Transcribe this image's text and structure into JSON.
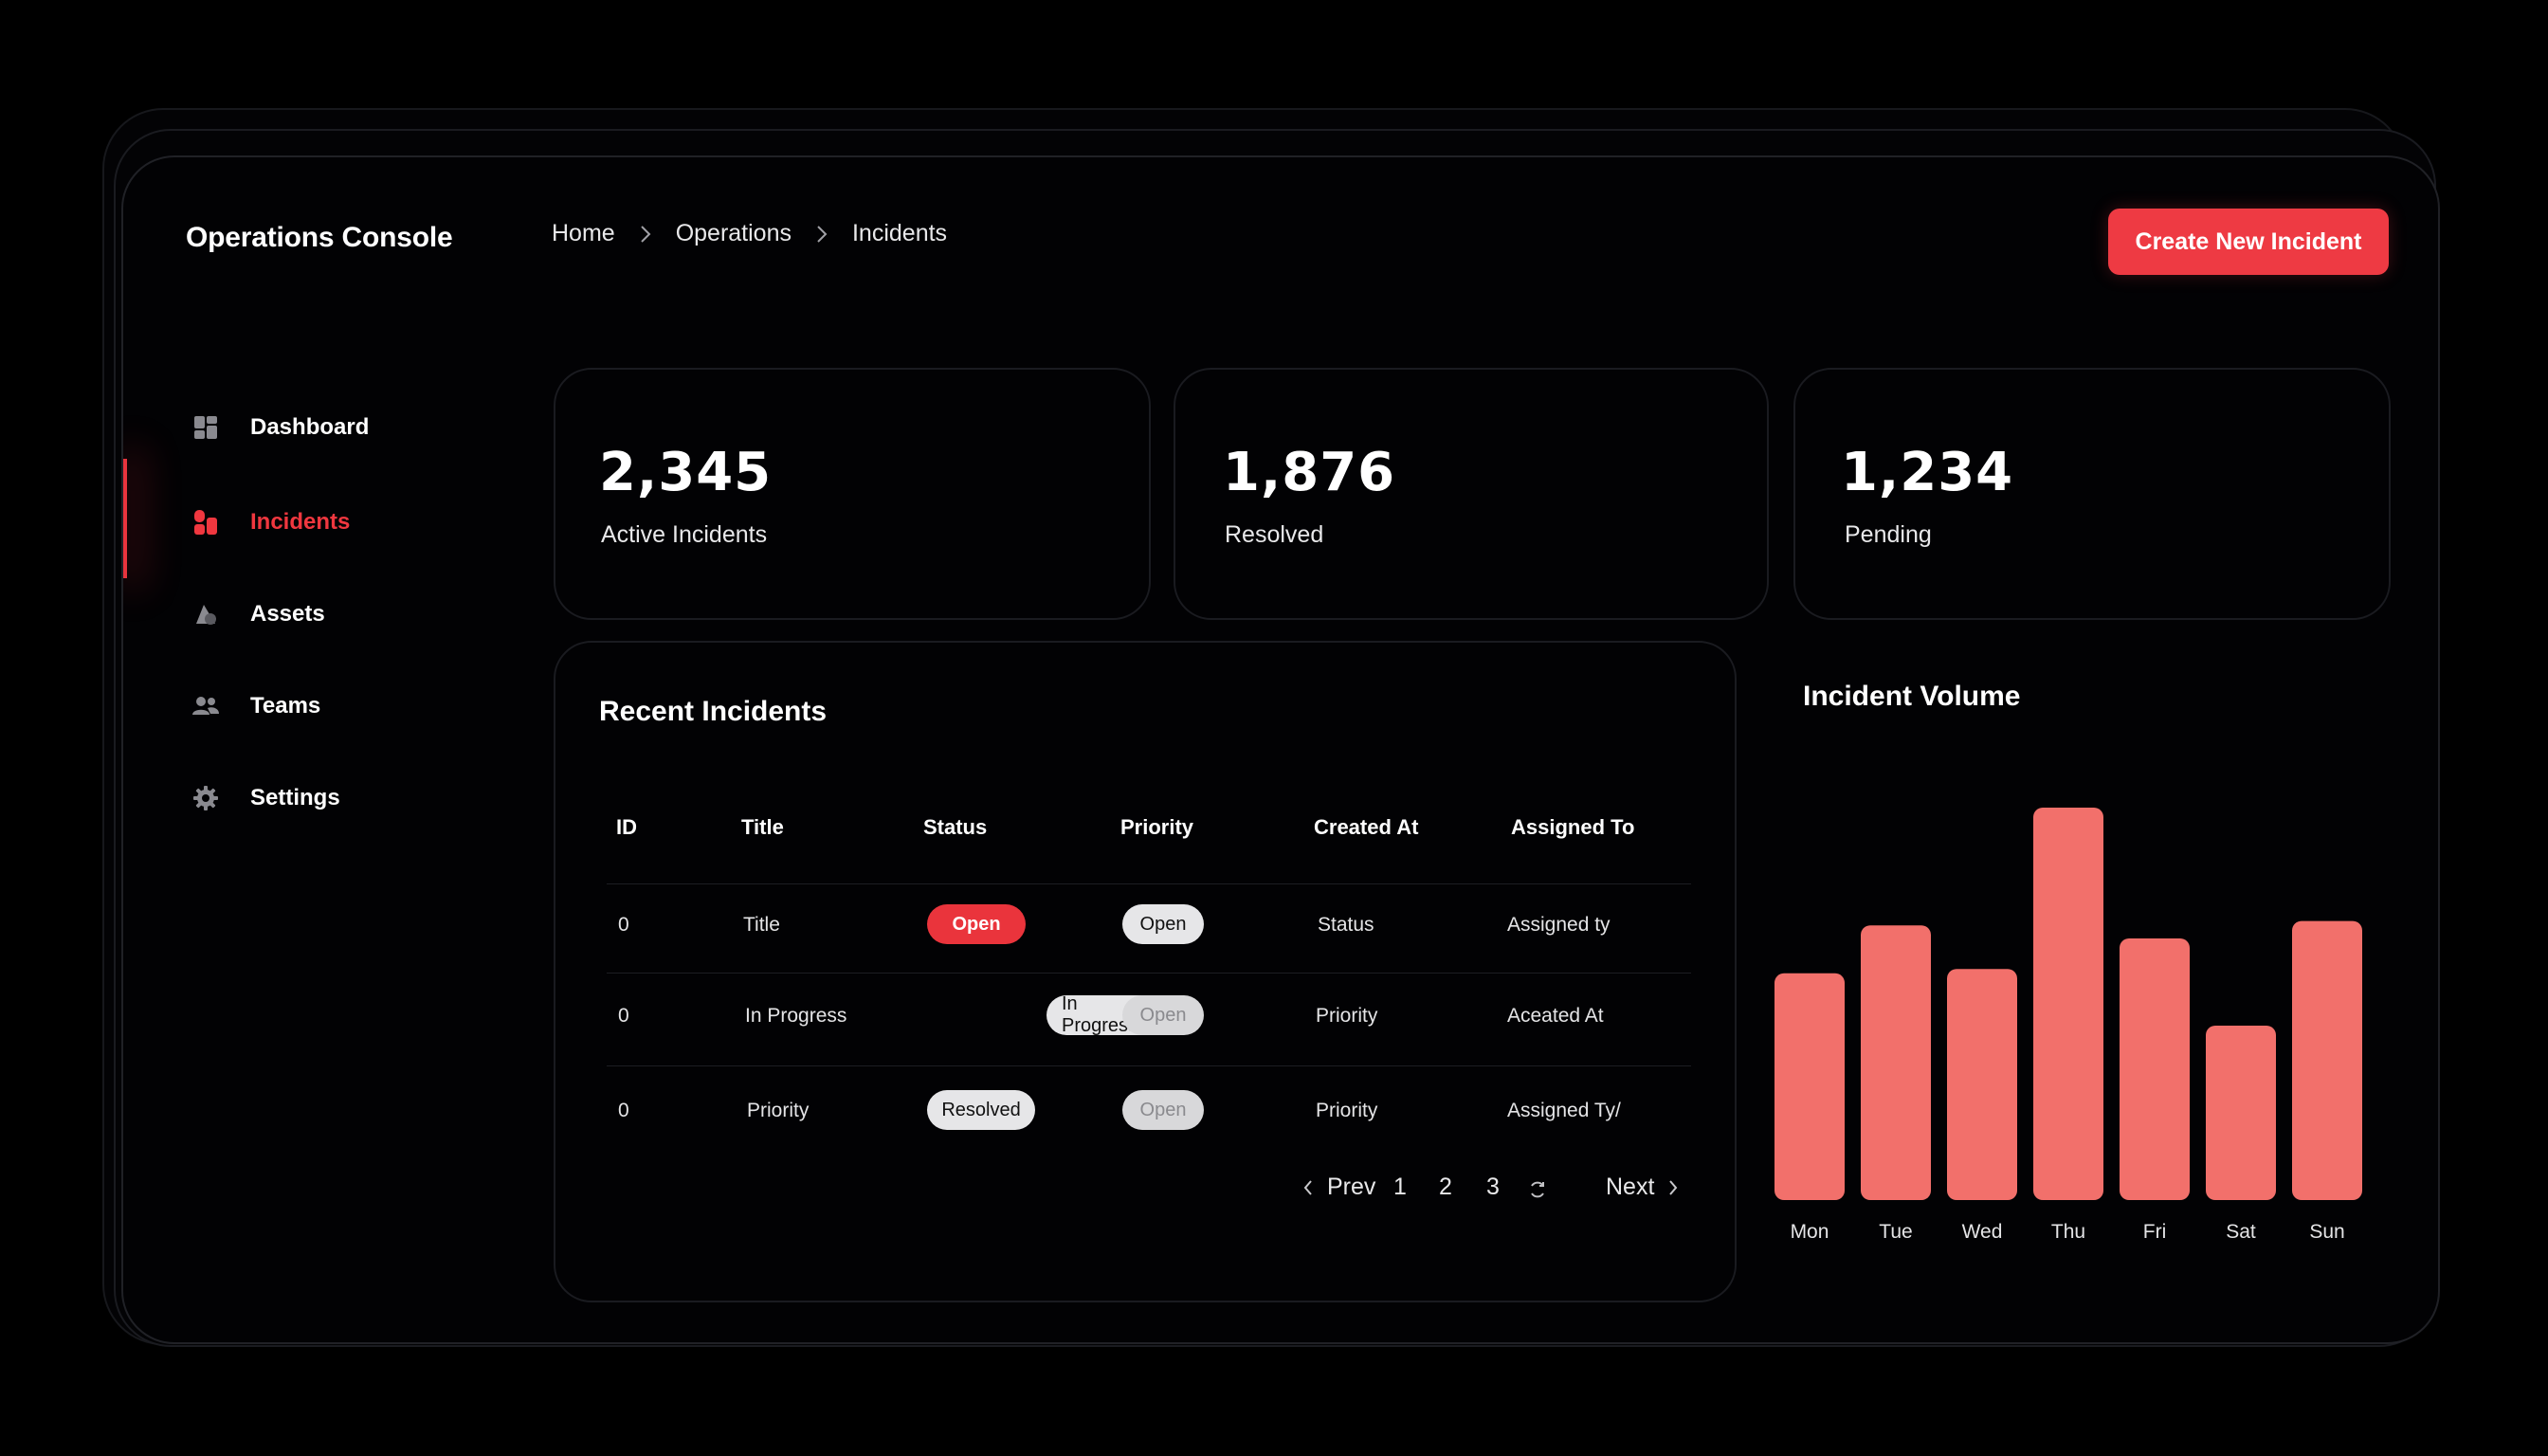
{
  "app": {
    "title": "Operations Console"
  },
  "breadcrumb": [
    "Home",
    "Operations",
    "Incidents"
  ],
  "header": {
    "create_button": "Create New Incident"
  },
  "sidebar": {
    "items": [
      {
        "label": "Dashboard",
        "icon": "dashboard-icon",
        "active": false
      },
      {
        "label": "Incidents",
        "icon": "incidents-icon",
        "active": true
      },
      {
        "label": "Assets",
        "icon": "assets-icon",
        "active": false
      },
      {
        "label": "Teams",
        "icon": "teams-icon",
        "active": false
      },
      {
        "label": "Settings",
        "icon": "gear-icon",
        "active": false
      }
    ]
  },
  "stats": [
    {
      "value": "2,345",
      "label": "Active Incidents"
    },
    {
      "value": "1,876",
      "label": "Resolved"
    },
    {
      "value": "1,234",
      "label": "Pending"
    }
  ],
  "incidents": {
    "title": "Recent Incidents",
    "columns": [
      "ID",
      "Title",
      "Status",
      "Priority",
      "Created At",
      "Assigned To"
    ],
    "rows": [
      {
        "id": "0",
        "title": "Title",
        "status": "Open",
        "priority": "Open",
        "created": "Status",
        "assigned": "Assigned ty"
      },
      {
        "id": "0",
        "title": "In Progress",
        "status": "In Progress",
        "priority": "Open",
        "created": "Priority",
        "assigned": "Aceated At"
      },
      {
        "id": "0",
        "title": "Priority",
        "status": "Resolved",
        "priority": "Open",
        "created": "Priority",
        "assigned": "Assigned Ty/"
      }
    ],
    "pagination": {
      "prev": "Prev",
      "pages": [
        "1",
        "2",
        "3"
      ],
      "next": "Next"
    }
  },
  "colors": {
    "accent": "#ee3a43",
    "bar": "#f2706b",
    "background": "#020204"
  },
  "chart_data": {
    "type": "bar",
    "title": "Incident Volume",
    "categories": [
      "Mon",
      "Tue",
      "Wed",
      "Thu",
      "Fri",
      "Sat",
      "Sun"
    ],
    "values": [
      52,
      63,
      53,
      90,
      60,
      40,
      64
    ],
    "ylim": [
      0,
      100
    ],
    "grid": false,
    "legend": "none"
  }
}
